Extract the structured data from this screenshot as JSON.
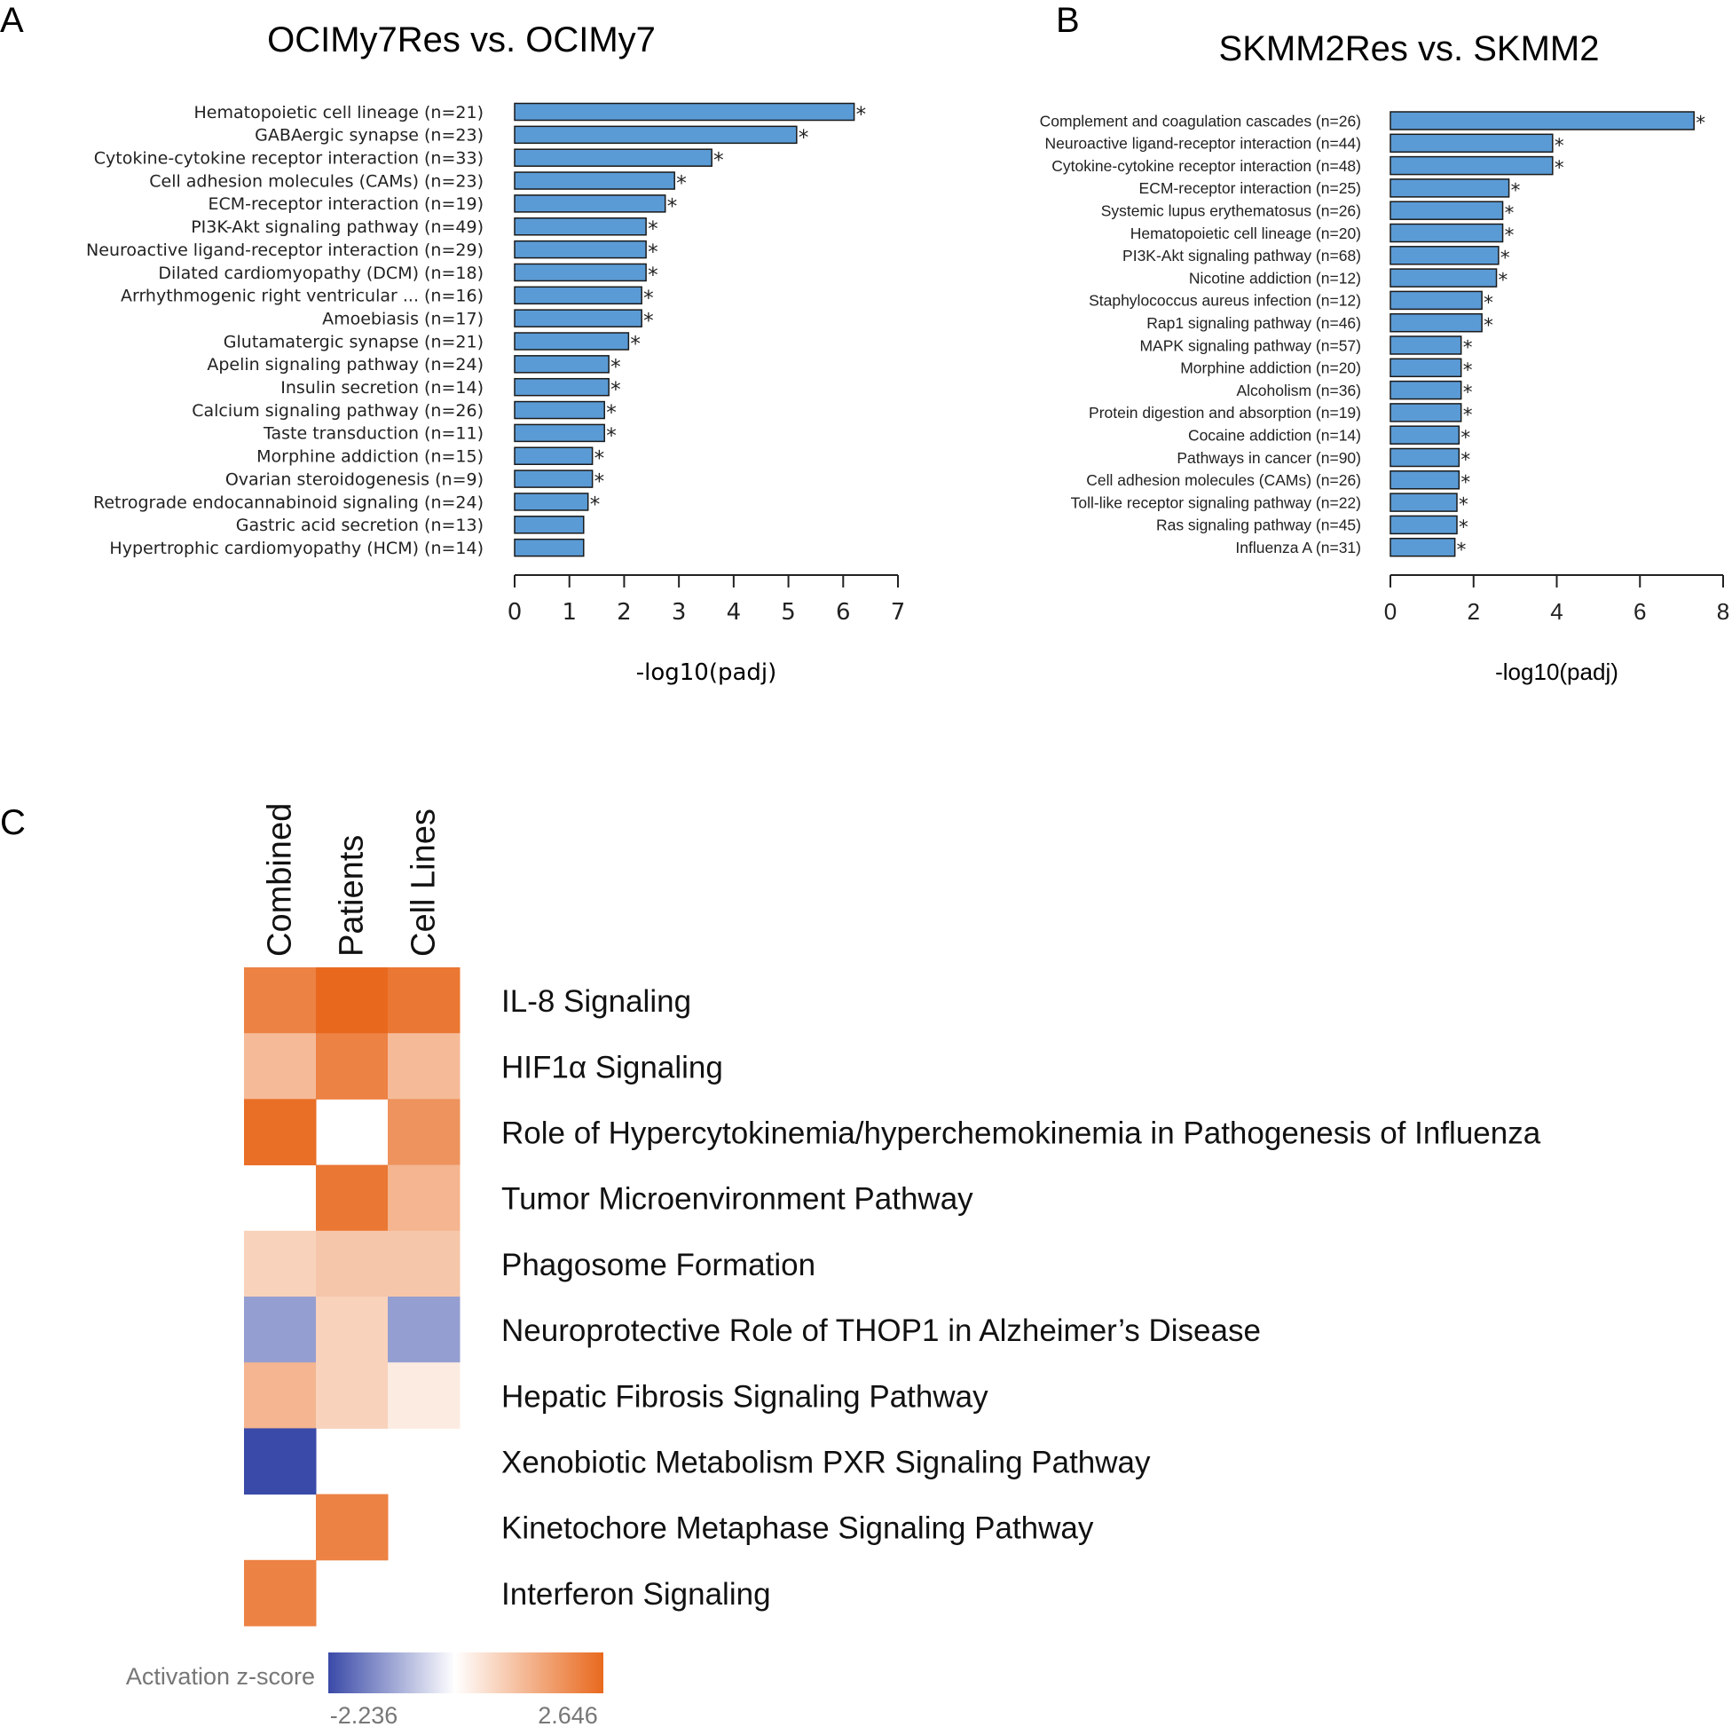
{
  "colors": {
    "bar_fill": "#5b9bd5",
    "bar_stroke": "#1a1a1a",
    "heat_high": "#e8691e",
    "heat_mid": "#ffffff",
    "heat_low": "#3a4aa8",
    "legend_text": "#777777"
  },
  "chart_data": [
    {
      "panel": "A",
      "type": "bar",
      "orientation": "horizontal",
      "title": "OCIMy7Res vs. OCIMy7",
      "xlabel": "-log10(padj)",
      "ylabel": "",
      "xlim": [
        0,
        7
      ],
      "ticks": [
        0,
        1,
        2,
        3,
        4,
        5,
        6,
        7
      ],
      "categories": [
        "Hematopoietic cell lineage (n=21)",
        "GABAergic synapse (n=23)",
        "Cytokine-cytokine receptor interaction (n=33)",
        "Cell adhesion molecules (CAMs) (n=23)",
        "ECM-receptor interaction (n=19)",
        "PI3K-Akt signaling pathway (n=49)",
        "Neuroactive ligand-receptor interaction (n=29)",
        "Dilated cardiomyopathy (DCM) (n=18)",
        "Arrhythmogenic right ventricular ... (n=16)",
        "Amoebiasis (n=17)",
        "Glutamatergic synapse (n=21)",
        "Apelin signaling pathway (n=24)",
        "Insulin secretion (n=14)",
        "Calcium signaling pathway (n=26)",
        "Taste transduction (n=11)",
        "Morphine addiction (n=15)",
        "Ovarian steroidogenesis (n=9)",
        "Retrograde endocannabinoid signaling (n=24)",
        "Gastric acid secretion (n=13)",
        "Hypertrophic cardiomyopathy (HCM) (n=14)"
      ],
      "values": [
        6.2,
        5.15,
        3.6,
        2.92,
        2.75,
        2.4,
        2.4,
        2.4,
        2.32,
        2.32,
        2.08,
        1.72,
        1.72,
        1.64,
        1.64,
        1.42,
        1.42,
        1.34,
        1.26,
        1.26
      ],
      "significant": [
        true,
        true,
        true,
        true,
        true,
        true,
        true,
        true,
        true,
        true,
        true,
        true,
        true,
        true,
        true,
        true,
        true,
        true,
        false,
        false
      ],
      "marker": "*"
    },
    {
      "panel": "B",
      "type": "bar",
      "orientation": "horizontal",
      "title": "SKMM2Res vs. SKMM2",
      "xlabel": "-log10(padj)",
      "ylabel": "",
      "xlim": [
        0,
        8
      ],
      "ticks": [
        0,
        2,
        4,
        6,
        8
      ],
      "categories": [
        "Complement and coagulation cascades (n=26)",
        "Neuroactive ligand-receptor interaction (n=44)",
        "Cytokine-cytokine receptor interaction (n=48)",
        "ECM-receptor interaction (n=25)",
        "Systemic lupus erythematosus (n=26)",
        "Hematopoietic cell lineage (n=20)",
        "PI3K-Akt signaling pathway (n=68)",
        "Nicotine addiction (n=12)",
        "Staphylococcus aureus infection (n=12)",
        "Rap1 signaling pathway (n=46)",
        "MAPK signaling pathway (n=57)",
        "Morphine addiction (n=20)",
        "Alcoholism (n=36)",
        "Protein digestion and absorption (n=19)",
        "Cocaine addiction (n=14)",
        "Pathways in cancer (n=90)",
        "Cell adhesion molecules (CAMs) (n=26)",
        "Toll-like receptor signaling pathway (n=22)",
        "Ras signaling pathway (n=45)",
        "Influenza A (n=31)"
      ],
      "values": [
        7.3,
        3.9,
        3.9,
        2.85,
        2.7,
        2.7,
        2.6,
        2.55,
        2.2,
        2.2,
        1.7,
        1.7,
        1.7,
        1.7,
        1.65,
        1.65,
        1.65,
        1.6,
        1.6,
        1.55
      ],
      "significant": [
        true,
        true,
        true,
        true,
        true,
        true,
        true,
        true,
        true,
        true,
        true,
        true,
        true,
        true,
        true,
        true,
        true,
        true,
        true,
        true
      ],
      "marker": "*"
    },
    {
      "panel": "C",
      "type": "heatmap",
      "title": "",
      "columns": [
        "Combined",
        "Patients",
        "Cell Lines"
      ],
      "rows": [
        "IL-8 Signaling",
        "HIF1α Signaling",
        "Role of Hypercytokinemia/hyperchemokinemia in Pathogenesis of Influenza",
        "Tumor Microenvironment Pathway",
        "Phagosome Formation",
        "Neuroprotective Role of THOP1 in Alzheimer’s Disease",
        "Hepatic Fibrosis Signaling Pathway",
        "Xenobiotic Metabolism PXR Signaling Pathway",
        "Kinetochore Metaphase Signaling Pathway",
        "Interferon Signaling"
      ],
      "values": [
        [
          2.2,
          2.646,
          2.4
        ],
        [
          1.2,
          2.2,
          1.2
        ],
        [
          2.55,
          null,
          1.9
        ],
        [
          null,
          2.4,
          1.3
        ],
        [
          0.8,
          1.0,
          1.0
        ],
        [
          -1.2,
          0.8,
          -1.2
        ],
        [
          1.3,
          0.8,
          0.35
        ],
        [
          -2.236,
          null,
          null
        ],
        [
          null,
          2.2,
          null
        ],
        [
          2.2,
          null,
          null
        ]
      ],
      "colorbar": {
        "label": "Activation z-score",
        "min": -2.236,
        "max": 2.646,
        "min_label": "-2.236",
        "max_label": "2.646"
      }
    }
  ],
  "panel_labels": {
    "a": "A",
    "b": "B",
    "c": "C"
  }
}
